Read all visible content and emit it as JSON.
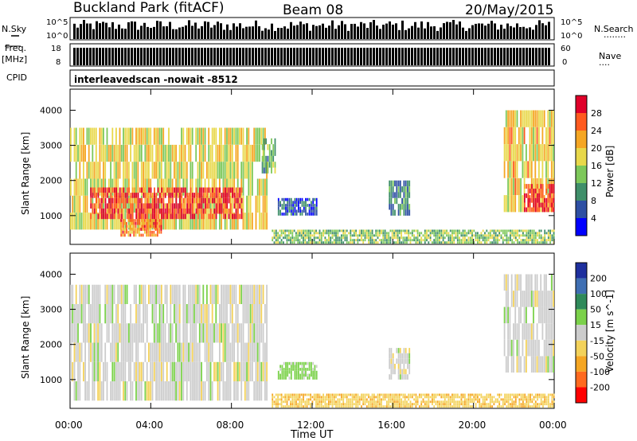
{
  "header": {
    "station": "Buckland Park (fitACF)",
    "beam": "Beam 08",
    "date": "20/May/2015"
  },
  "sidebar": {
    "nsky": "N.Sky",
    "freq_line1": "Freq.",
    "freq_line2": "[MHz]",
    "cpid": "CPID",
    "nsearch": "N.Search",
    "nave": "Nave"
  },
  "top_panels": {
    "noise_left_ticks": [
      "10^5",
      "10^0"
    ],
    "noise_right_ticks": [
      "10^5",
      "10^0"
    ],
    "freq_left_ticks": [
      "18",
      "8"
    ],
    "freq_right_ticks": [
      "60",
      "0"
    ],
    "cpid_text": "interleavedscan -nowait -8512"
  },
  "x_axis": {
    "label": "Time UT",
    "ticks": [
      "00:00",
      "04:00",
      "08:00",
      "12:00",
      "16:00",
      "20:00",
      "00:00"
    ]
  },
  "power_panel": {
    "ylabel": "Slant Range [km]",
    "colorbar_label": "Power [dB]",
    "colorbar_ticks": [
      "28",
      "24",
      "20",
      "16",
      "12",
      "8",
      "4"
    ],
    "colors": [
      "#0000ff",
      "#2e4fa3",
      "#3f8f6a",
      "#7dc85a",
      "#e8d84a",
      "#f5a623",
      "#ff5a1f",
      "#e0002a"
    ]
  },
  "velocity_panel": {
    "ylabel": "Slant Range [km]",
    "colorbar_label": "Velocity [m s^-1]",
    "colorbar_ticks": [
      "200",
      "100",
      "50",
      "15",
      "-15",
      "-50",
      "-100",
      "-200"
    ],
    "colors": [
      "#1e2f9e",
      "#3f6fb3",
      "#2f8a5a",
      "#7bd14a",
      "#cccccc",
      "#f3d25a",
      "#f5a623",
      "#ff6a1f",
      "#ff0000"
    ]
  },
  "chart_data": [
    {
      "type": "heatmap",
      "title": "Power [dB]",
      "xlabel": "Time UT",
      "ylabel": "Slant Range [km]",
      "xlim": [
        0,
        24
      ],
      "ylim": [
        180,
        4600
      ],
      "x_ticks": [
        "00:00",
        "04:00",
        "08:00",
        "12:00",
        "16:00",
        "20:00",
        "00:00"
      ],
      "y_ticks": [
        1000,
        2000,
        3000,
        4000
      ],
      "colorbar_range": [
        0,
        32
      ],
      "regions": [
        {
          "t0": 0.0,
          "t1": 9.8,
          "r0": 600,
          "r1": 3500,
          "value": 18
        },
        {
          "t0": 1.0,
          "t1": 8.5,
          "r0": 900,
          "r1": 1800,
          "value": 28
        },
        {
          "t0": 2.5,
          "t1": 4.5,
          "r0": 400,
          "r1": 900,
          "value": 24
        },
        {
          "t0": 9.5,
          "t1": 10.2,
          "r0": 2200,
          "r1": 3200,
          "value": 12
        },
        {
          "t0": 10.3,
          "t1": 12.2,
          "r0": 1000,
          "r1": 1500,
          "value": 6
        },
        {
          "t0": 15.8,
          "t1": 16.8,
          "r0": 1000,
          "r1": 2000,
          "value": 10
        },
        {
          "t0": 21.5,
          "t1": 24.0,
          "r0": 1100,
          "r1": 4000,
          "value": 20
        },
        {
          "t0": 22.5,
          "t1": 24.0,
          "r0": 1100,
          "r1": 1900,
          "value": 28
        },
        {
          "t0": 10.0,
          "t1": 24.0,
          "r0": 200,
          "r1": 600,
          "value": 14
        }
      ]
    },
    {
      "type": "heatmap",
      "title": "Velocity [m s^-1]",
      "xlabel": "Time UT",
      "ylabel": "Slant Range [km]",
      "xlim": [
        0,
        24
      ],
      "ylim": [
        180,
        4600
      ],
      "x_ticks": [
        "00:00",
        "04:00",
        "08:00",
        "12:00",
        "16:00",
        "20:00",
        "00:00"
      ],
      "y_ticks": [
        1000,
        2000,
        3000,
        4000
      ],
      "colorbar_range": [
        -250,
        250
      ],
      "regions": [
        {
          "t0": 0.0,
          "t1": 9.8,
          "r0": 400,
          "r1": 3700,
          "value": 0
        },
        {
          "t0": 10.3,
          "t1": 12.2,
          "r0": 1000,
          "r1": 1500,
          "value": 30
        },
        {
          "t0": 15.8,
          "t1": 16.8,
          "r0": 1000,
          "r1": 1900,
          "value": 0
        },
        {
          "t0": 21.5,
          "t1": 24.0,
          "r0": 1200,
          "r1": 4000,
          "value": 0
        },
        {
          "t0": 10.0,
          "t1": 24.0,
          "r0": 200,
          "r1": 600,
          "value": -40
        }
      ]
    }
  ]
}
